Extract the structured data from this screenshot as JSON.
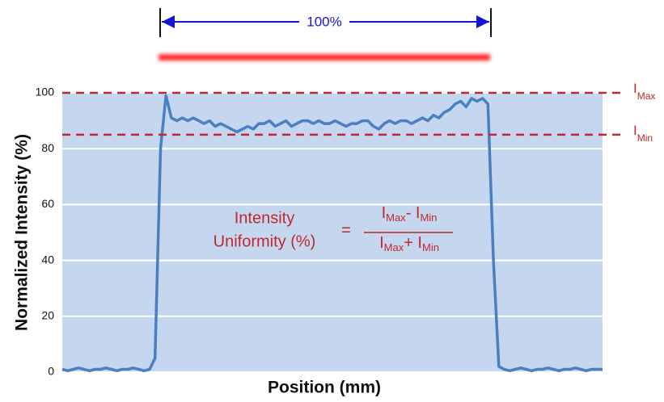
{
  "chart_data": {
    "type": "line",
    "x_label": "Position (mm)",
    "y_label": "Normalized Intensity (%)",
    "ylim": [
      0,
      100
    ],
    "yticks": [
      0,
      20,
      40,
      60,
      80,
      100
    ],
    "grid": true,
    "color": "#4a7fc1",
    "background": "#c5d7ee",
    "values": [
      1,
      0.5,
      1,
      1.5,
      1,
      0.5,
      1,
      1,
      1.5,
      1,
      0.5,
      1,
      1,
      1.5,
      1,
      0.5,
      1,
      5,
      80,
      99,
      91,
      90,
      91,
      90,
      91,
      90,
      89,
      90,
      88,
      89,
      88,
      87,
      86,
      87,
      88,
      87,
      89,
      89,
      90,
      88,
      89,
      90,
      88,
      89,
      90,
      90,
      89,
      90,
      89,
      89,
      90,
      89,
      88,
      89,
      89,
      90,
      90,
      88,
      87,
      89,
      90,
      89,
      90,
      90,
      89,
      90,
      91,
      90,
      92,
      91,
      93,
      94,
      96,
      97,
      95,
      98,
      97,
      98,
      96,
      40,
      2,
      1,
      0.5,
      1,
      1.5,
      1,
      0.5,
      1,
      1,
      1.5,
      1,
      0.5,
      1,
      1,
      1.5,
      1,
      0.5,
      1,
      1,
      1
    ],
    "span_label": "100%",
    "hline_color": "#c0272d",
    "hlines": [
      {
        "value": 100,
        "label": "I",
        "sub": "Max"
      },
      {
        "value": 85,
        "label": "I",
        "sub": "Min"
      }
    ],
    "formula": {
      "left": [
        "Intensity",
        "Uniformity (%)"
      ],
      "equals": "=",
      "numerator": [
        "I",
        "Max",
        "- I",
        "Min"
      ],
      "denominator": [
        "I",
        "Max",
        "+ I",
        "Min"
      ]
    }
  }
}
